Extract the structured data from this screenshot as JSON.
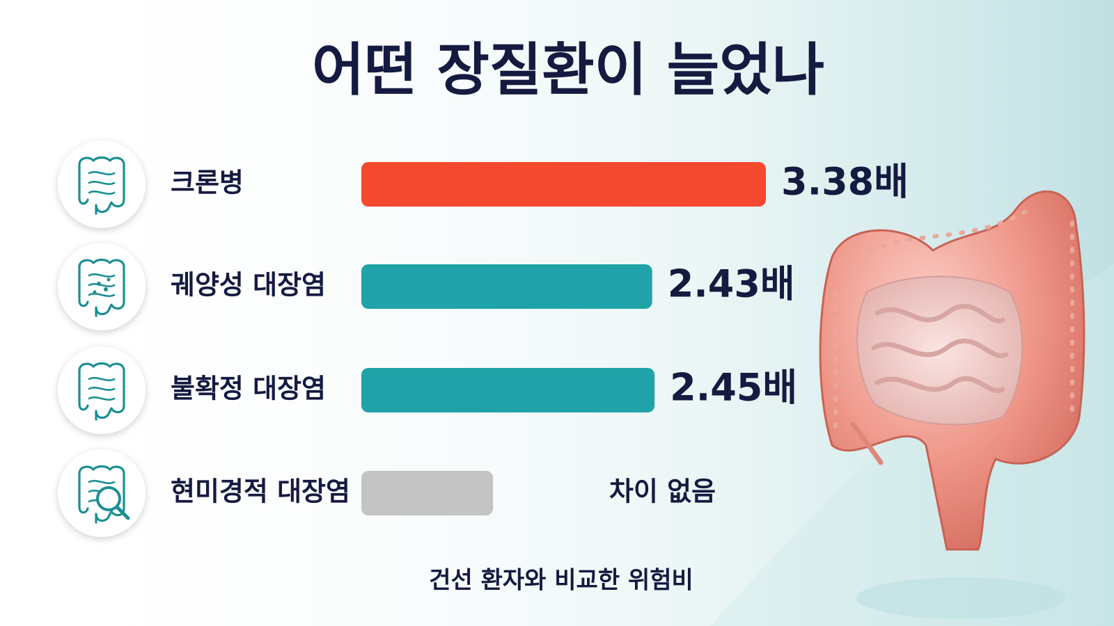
{
  "chart_data": {
    "type": "bar",
    "orientation": "horizontal",
    "title": "어떤 장질환이 늘었나",
    "footnote": "건선 환자와 비교한 위험비",
    "categories": [
      "크론병",
      "궤양성 대장염",
      "불확정 대장염",
      "현미경적 대장염"
    ],
    "values": [
      3.38,
      2.43,
      2.45,
      1.1
    ],
    "value_labels": [
      "3.38배",
      "2.43배",
      "2.45배",
      "차이 없음"
    ],
    "colors": [
      "#f4492f",
      "#1fa3a8",
      "#1fa3a8",
      "#c4c4c4"
    ]
  }
}
